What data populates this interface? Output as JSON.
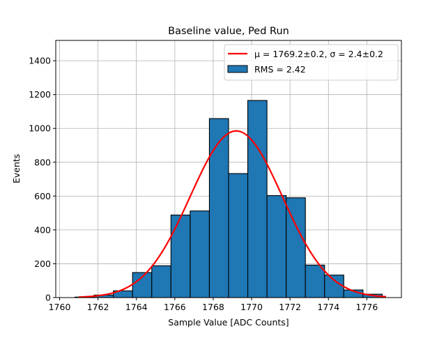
{
  "chart_data": {
    "type": "bar",
    "title": "Baseline value, Ped Run",
    "xlabel": "Sample Value [ADC Counts]",
    "ylabel": "Events",
    "xlim": [
      1759.8,
      1777.8
    ],
    "ylim": [
      0,
      1520
    ],
    "grid": true,
    "legend_position": "top-right",
    "xticks": [
      1760,
      1762,
      1764,
      1766,
      1768,
      1770,
      1772,
      1774,
      1776
    ],
    "yticks": [
      0,
      200,
      400,
      600,
      800,
      1000,
      1200,
      1400
    ],
    "histogram": {
      "name": "RMS = 2.42",
      "color": "#1f77b4",
      "edgecolor": "#000000",
      "bins": [
        {
          "x0": 1760.8,
          "x1": 1761.8,
          "count": 3
        },
        {
          "x0": 1761.8,
          "x1": 1762.8,
          "count": 15
        },
        {
          "x0": 1762.8,
          "x1": 1763.8,
          "count": 40
        },
        {
          "x0": 1763.8,
          "x1": 1764.8,
          "count": 148
        },
        {
          "x0": 1764.8,
          "x1": 1765.8,
          "count": 188
        },
        {
          "x0": 1765.8,
          "x1": 1766.8,
          "count": 488
        },
        {
          "x0": 1766.8,
          "x1": 1767.8,
          "count": 512
        },
        {
          "x0": 1767.8,
          "x1": 1768.8,
          "count": 1058
        },
        {
          "x0": 1768.8,
          "x1": 1769.8,
          "count": 733
        },
        {
          "x0": 1769.8,
          "x1": 1770.8,
          "count": 1165
        },
        {
          "x0": 1770.8,
          "x1": 1771.8,
          "count": 603
        },
        {
          "x0": 1771.8,
          "x1": 1772.8,
          "count": 590
        },
        {
          "x0": 1772.8,
          "x1": 1773.8,
          "count": 192
        },
        {
          "x0": 1773.8,
          "x1": 1774.8,
          "count": 133
        },
        {
          "x0": 1774.8,
          "x1": 1775.8,
          "count": 45
        },
        {
          "x0": 1775.8,
          "x1": 1776.8,
          "count": 20
        }
      ]
    },
    "fit": {
      "name": "$\\mu = 1769.2$±0.2, $\\sigma = 2.4$±0.2",
      "label_display": "μ = 1769.2±0.2, σ = 2.4±0.2",
      "mu": 1769.2,
      "sigma": 2.4,
      "amplitude": 985,
      "x_range": [
        1761.0,
        1777.0
      ],
      "color": "#ff0000"
    }
  }
}
